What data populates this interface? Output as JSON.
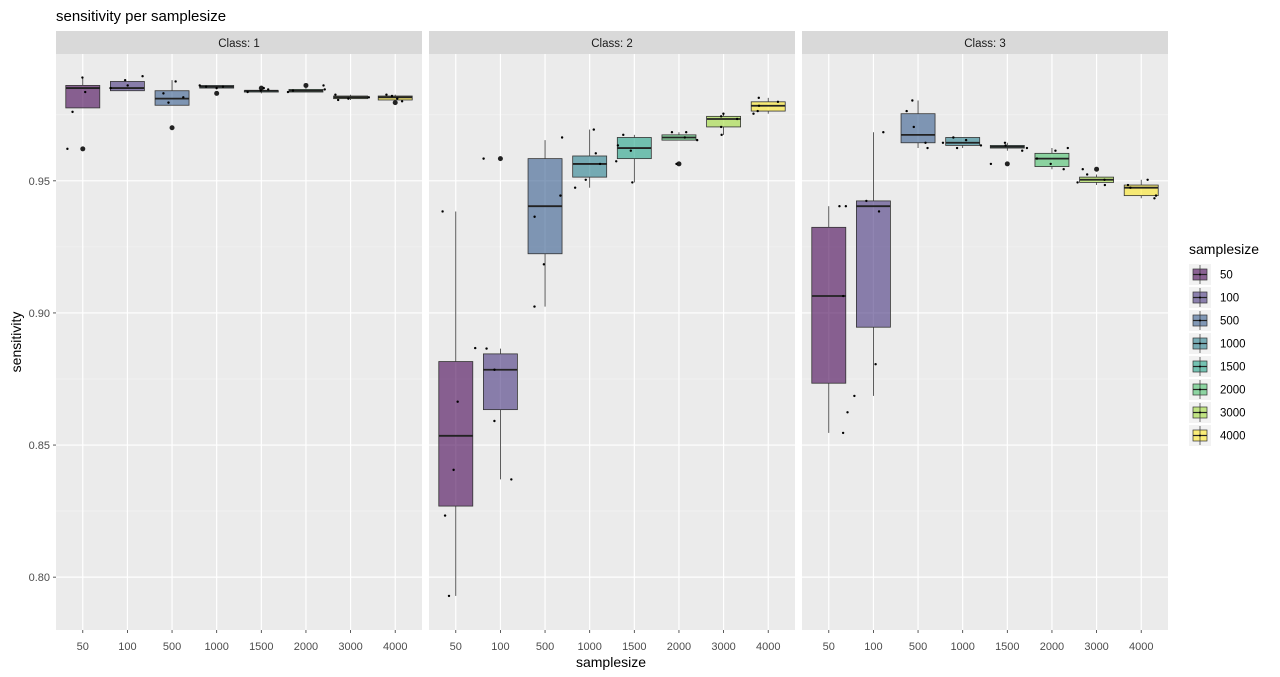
{
  "chart_data": {
    "type": "boxplot",
    "title": "sensitivity per samplesize",
    "xlabel": "samplesize",
    "ylabel": "sensitivity",
    "ylim": [
      0.78,
      0.998
    ],
    "yticks": [
      0.8,
      0.85,
      0.9,
      0.95
    ],
    "ytick_labels": [
      "0.80",
      "0.85",
      "0.90",
      "0.95"
    ],
    "categories": [
      "50",
      "100",
      "500",
      "1000",
      "1500",
      "2000",
      "3000",
      "4000"
    ],
    "colors": [
      "#440154",
      "#46337E",
      "#365C8D",
      "#277F8E",
      "#1FA187",
      "#4AC16D",
      "#A0DA39",
      "#FDE725"
    ],
    "legend": {
      "title": "samplesize",
      "position": "right",
      "entries": [
        "50",
        "100",
        "500",
        "1000",
        "1500",
        "2000",
        "3000",
        "4000"
      ]
    },
    "facets": [
      {
        "label": "Class: 1",
        "boxes": [
          {
            "q1": 0.9776,
            "median": 0.9851,
            "q3": 0.9861,
            "lo": 0.9776,
            "hi": 0.9891,
            "outliers": [
              0.9621
            ],
            "points": [
              0.9891,
              0.9836,
              0.9621,
              0.9761
            ]
          },
          {
            "q1": 0.9841,
            "median": 0.9851,
            "q3": 0.9876,
            "lo": 0.9841,
            "hi": 0.9876,
            "outliers": [],
            "points": [
              0.9881,
              0.9861,
              0.9851,
              0.9896
            ]
          },
          {
            "q1": 0.9786,
            "median": 0.9811,
            "q3": 0.9841,
            "lo": 0.9786,
            "hi": 0.9881,
            "outliers": [
              0.9701
            ],
            "points": [
              0.9876,
              0.9796,
              0.9831,
              0.9816
            ]
          },
          {
            "q1": 0.9851,
            "median": 0.9856,
            "q3": 0.9861,
            "lo": 0.9846,
            "hi": 0.9861,
            "outliers": [
              0.9831
            ],
            "points": [
              0.9856,
              0.9861,
              0.9851,
              0.9856
            ]
          },
          {
            "q1": 0.9836,
            "median": 0.9841,
            "q3": 0.9841,
            "lo": 0.9831,
            "hi": 0.9846,
            "outliers": [
              0.9851
            ],
            "points": [
              0.9846,
              0.9836,
              0.9851,
              0.9841
            ]
          },
          {
            "q1": 0.9836,
            "median": 0.9841,
            "q3": 0.9846,
            "lo": 0.9836,
            "hi": 0.9851,
            "outliers": [
              0.9861
            ],
            "points": [
              0.9841,
              0.9836,
              0.9861,
              0.9846
            ]
          },
          {
            "q1": 0.9811,
            "median": 0.9816,
            "q3": 0.9821,
            "lo": 0.9806,
            "hi": 0.9826,
            "outliers": [],
            "points": [
              0.9826,
              0.9811,
              0.9816,
              0.9806
            ]
          },
          {
            "q1": 0.9806,
            "median": 0.9816,
            "q3": 0.9821,
            "lo": 0.9801,
            "hi": 0.9826,
            "outliers": [
              0.9796
            ],
            "points": [
              0.9821,
              0.9811,
              0.9801,
              0.9826
            ]
          }
        ]
      },
      {
        "label": "Class: 2",
        "boxes": [
          {
            "q1": 0.8269,
            "median": 0.8535,
            "q3": 0.8816,
            "lo": 0.7929,
            "hi": 0.9384,
            "outliers": [],
            "points": [
              0.9384,
              0.8867,
              0.8406,
              0.8233,
              0.8664,
              0.7929
            ]
          },
          {
            "q1": 0.8634,
            "median": 0.8785,
            "q3": 0.8845,
            "lo": 0.837,
            "hi": 0.8865,
            "outliers": [
              0.9584
            ],
            "points": [
              0.8865,
              0.837,
              0.8785,
              0.8591,
              0.9584
            ]
          },
          {
            "q1": 0.9224,
            "median": 0.9404,
            "q3": 0.9584,
            "lo": 0.9024,
            "hi": 0.9654,
            "outliers": [],
            "points": [
              0.9664,
              0.9364,
              0.9444,
              0.9184,
              0.9024
            ]
          },
          {
            "q1": 0.9514,
            "median": 0.9564,
            "q3": 0.9594,
            "lo": 0.9474,
            "hi": 0.9694,
            "outliers": [],
            "points": [
              0.9694,
              0.9504,
              0.9564,
              0.9604,
              0.9474
            ]
          },
          {
            "q1": 0.9584,
            "median": 0.9624,
            "q3": 0.9664,
            "lo": 0.9494,
            "hi": 0.9674,
            "outliers": [],
            "points": [
              0.9674,
              0.9494,
              0.9634,
              0.9574,
              0.9614
            ]
          },
          {
            "q1": 0.9654,
            "median": 0.9664,
            "q3": 0.9674,
            "lo": 0.9654,
            "hi": 0.9684,
            "outliers": [
              0.9564
            ],
            "points": [
              0.9684,
              0.9664,
              0.9654,
              0.9684,
              0.9564
            ]
          },
          {
            "q1": 0.9704,
            "median": 0.9734,
            "q3": 0.9744,
            "lo": 0.9674,
            "hi": 0.9754,
            "outliers": [],
            "points": [
              0.9754,
              0.9704,
              0.9734,
              0.9674,
              0.9744
            ]
          },
          {
            "q1": 0.9764,
            "median": 0.9784,
            "q3": 0.9799,
            "lo": 0.9754,
            "hi": 0.9814,
            "outliers": [],
            "points": [
              0.9814,
              0.9764,
              0.9799,
              0.9754,
              0.9784
            ]
          }
        ]
      },
      {
        "label": "Class: 3",
        "boxes": [
          {
            "q1": 0.8734,
            "median": 0.9064,
            "q3": 0.9324,
            "lo": 0.8546,
            "hi": 0.9404,
            "outliers": [],
            "points": [
              0.9404,
              0.8546,
              0.8624,
              0.9404,
              0.9064
            ]
          },
          {
            "q1": 0.8946,
            "median": 0.9404,
            "q3": 0.9424,
            "lo": 0.8686,
            "hi": 0.9684,
            "outliers": [],
            "points": [
              0.9684,
              0.9384,
              0.8806,
              0.8686,
              0.9424
            ]
          },
          {
            "q1": 0.9644,
            "median": 0.9674,
            "q3": 0.9754,
            "lo": 0.9624,
            "hi": 0.9804,
            "outliers": [],
            "points": [
              0.9804,
              0.9764,
              0.9704,
              0.9644,
              0.9624
            ]
          },
          {
            "q1": 0.9634,
            "median": 0.9644,
            "q3": 0.9664,
            "lo": 0.9624,
            "hi": 0.9664,
            "outliers": [],
            "points": [
              0.9664,
              0.9634,
              0.9644,
              0.9624,
              0.9654
            ]
          },
          {
            "q1": 0.9624,
            "median": 0.9629,
            "q3": 0.9634,
            "lo": 0.9614,
            "hi": 0.9644,
            "outliers": [
              0.9564
            ],
            "points": [
              0.9644,
              0.9564,
              0.9624,
              0.9634,
              0.9614
            ]
          },
          {
            "q1": 0.9554,
            "median": 0.9584,
            "q3": 0.9604,
            "lo": 0.9544,
            "hi": 0.9624,
            "outliers": [],
            "points": [
              0.9614,
              0.9564,
              0.9584,
              0.9544,
              0.9624
            ]
          },
          {
            "q1": 0.9494,
            "median": 0.9504,
            "q3": 0.9514,
            "lo": 0.9484,
            "hi": 0.9524,
            "outliers": [
              0.9544
            ],
            "points": [
              0.9524,
              0.9494,
              0.9544,
              0.9484,
              0.9504
            ]
          },
          {
            "q1": 0.9444,
            "median": 0.9474,
            "q3": 0.9484,
            "lo": 0.9434,
            "hi": 0.9504,
            "outliers": [],
            "points": [
              0.9504,
              0.9444,
              0.9474,
              0.9434,
              0.9484
            ]
          }
        ]
      }
    ]
  }
}
